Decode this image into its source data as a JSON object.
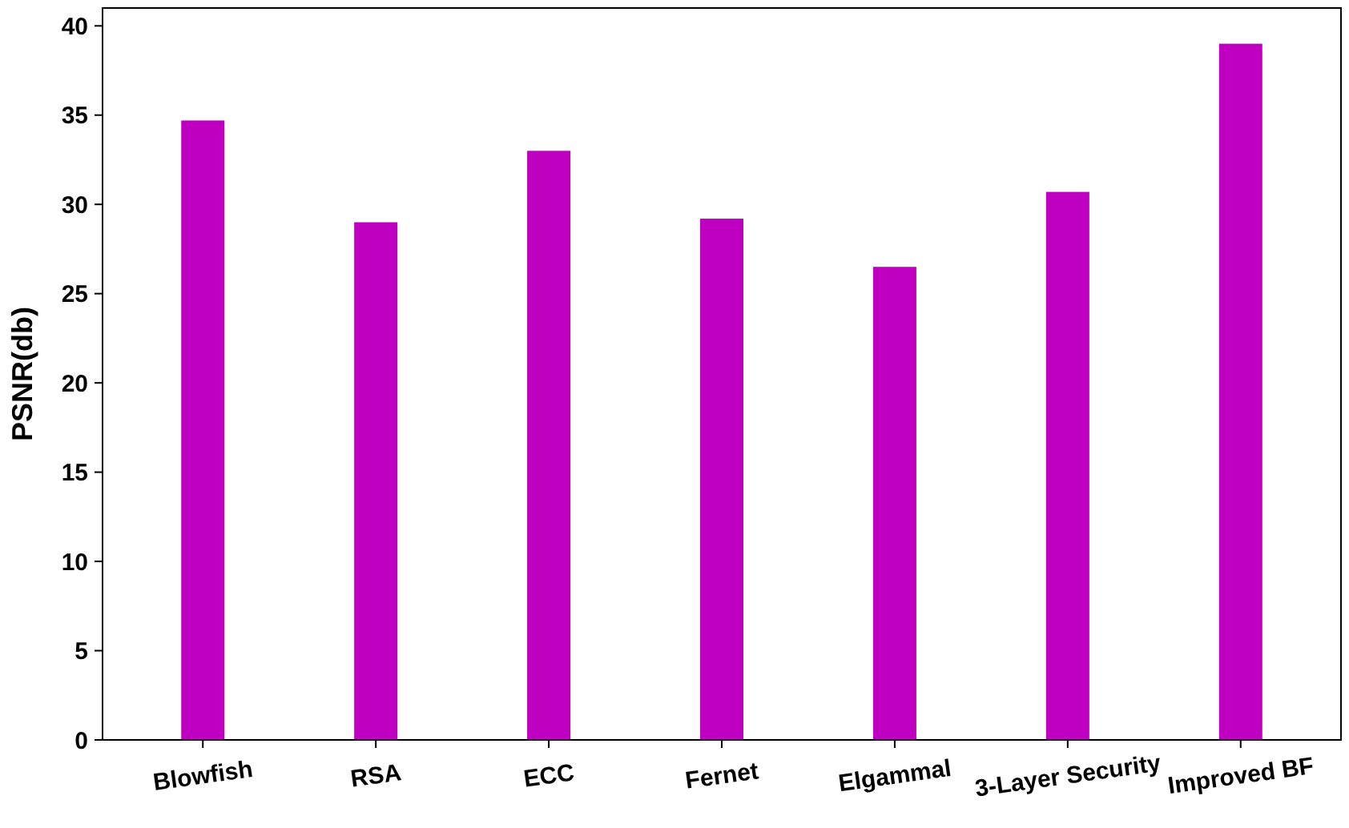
{
  "chart_data": {
    "type": "bar",
    "ylabel": "PSNR(db)",
    "categories": [
      "Blowfish",
      "RSA",
      "ECC",
      "Fernet",
      "Elgammal",
      "3-Layer Security",
      "Improved BF"
    ],
    "values": [
      34.7,
      29.0,
      33.0,
      29.2,
      26.5,
      30.7,
      39.0
    ],
    "color": "#c000c0",
    "ylim": [
      0,
      41
    ],
    "yticks": [
      0,
      5,
      10,
      15,
      20,
      25,
      30,
      35,
      40
    ],
    "grid": false
  }
}
